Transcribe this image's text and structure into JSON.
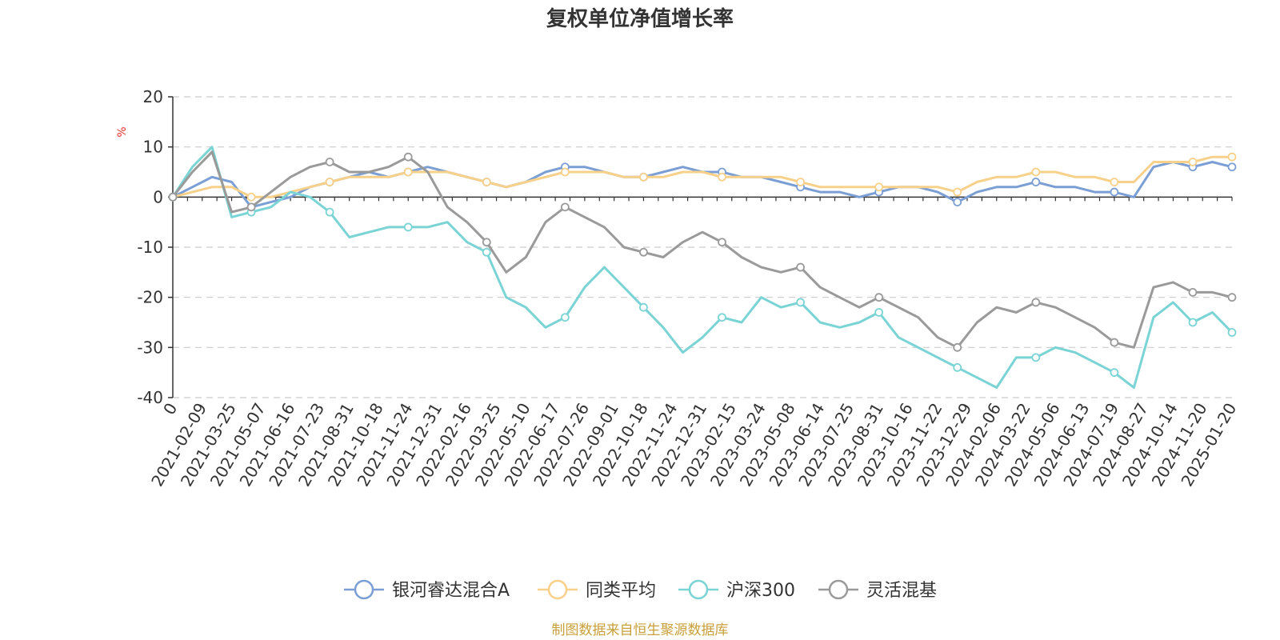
{
  "chart_data": {
    "type": "line",
    "title": "复权单位净值增长率",
    "ylabel": "%",
    "ylim": [
      -40,
      20
    ],
    "yticks": [
      20,
      10,
      0,
      -10,
      -20,
      -30,
      -40
    ],
    "grid": true,
    "legend_position": "bottom",
    "x_tick_labels": [
      "0",
      "2021-02-09",
      "2021-03-25",
      "2021-05-07",
      "2021-06-16",
      "2021-07-23",
      "2021-08-31",
      "2021-10-18",
      "2021-11-24",
      "2021-12-31",
      "2022-02-16",
      "2022-03-25",
      "2022-05-10",
      "2022-06-17",
      "2022-07-26",
      "2022-09-01",
      "2022-10-18",
      "2022-11-24",
      "2022-12-31",
      "2023-02-15",
      "2023-03-24",
      "2023-05-08",
      "2023-06-14",
      "2023-07-25",
      "2023-08-31",
      "2023-10-16",
      "2023-11-22",
      "2023-12-29",
      "2024-02-06",
      "2024-03-22",
      "2024-05-06",
      "2024-06-13",
      "2024-07-19",
      "2024-08-27",
      "2024-10-14",
      "2024-11-20",
      "2025-01-20"
    ],
    "series": [
      {
        "name": "银河睿达混合A",
        "color": "#7b9fd4",
        "values": [
          0,
          2,
          4,
          3,
          -2,
          -1,
          0,
          2,
          3,
          4,
          5,
          4,
          5,
          6,
          5,
          4,
          3,
          2,
          3,
          5,
          6,
          6,
          5,
          4,
          4,
          5,
          6,
          5,
          5,
          4,
          4,
          3,
          2,
          1,
          1,
          0,
          1,
          2,
          2,
          1,
          -1,
          1,
          2,
          2,
          3,
          2,
          2,
          1,
          1,
          0,
          6,
          7,
          6,
          7,
          6
        ]
      },
      {
        "name": "同类平均",
        "color": "#f7d08a",
        "values": [
          0,
          1,
          2,
          2,
          0,
          0,
          1,
          2,
          3,
          4,
          4,
          4,
          5,
          5,
          5,
          4,
          3,
          2,
          3,
          4,
          5,
          5,
          5,
          4,
          4,
          4,
          5,
          5,
          4,
          4,
          4,
          4,
          3,
          2,
          2,
          2,
          2,
          2,
          2,
          2,
          1,
          3,
          4,
          4,
          5,
          5,
          4,
          4,
          3,
          3,
          7,
          7,
          7,
          8,
          8
        ]
      },
      {
        "name": "沪深300",
        "color": "#7ad3d4",
        "values": [
          0,
          6,
          10,
          -4,
          -3,
          -2,
          1,
          0,
          -3,
          -8,
          -7,
          -6,
          -6,
          -6,
          -5,
          -9,
          -11,
          -20,
          -22,
          -26,
          -24,
          -18,
          -14,
          -18,
          -22,
          -26,
          -31,
          -28,
          -24,
          -25,
          -20,
          -22,
          -21,
          -25,
          -26,
          -25,
          -23,
          -28,
          -30,
          -32,
          -34,
          -36,
          -38,
          -32,
          -32,
          -30,
          -31,
          -33,
          -35,
          -38,
          -24,
          -21,
          -25,
          -23,
          -27
        ]
      },
      {
        "name": "灵活混基",
        "color": "#9a9a9a",
        "values": [
          0,
          5,
          9,
          -3,
          -2,
          1,
          4,
          6,
          7,
          5,
          5,
          6,
          8,
          5,
          -2,
          -5,
          -9,
          -15,
          -12,
          -5,
          -2,
          -4,
          -6,
          -10,
          -11,
          -12,
          -9,
          -7,
          -9,
          -12,
          -14,
          -15,
          -14,
          -18,
          -20,
          -22,
          -20,
          -22,
          -24,
          -28,
          -30,
          -25,
          -22,
          -23,
          -21,
          -22,
          -24,
          -26,
          -29,
          -30,
          -18,
          -17,
          -19,
          -19,
          -20
        ]
      }
    ]
  },
  "footer": {
    "source": "制图数据来自恒生聚源数据库"
  }
}
